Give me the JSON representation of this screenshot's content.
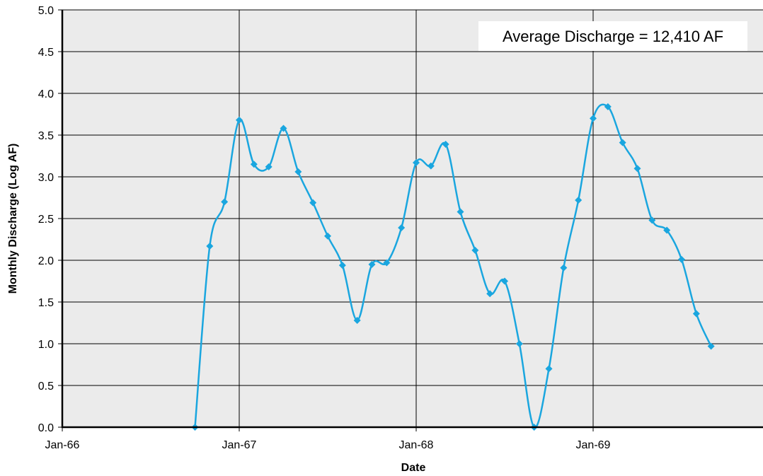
{
  "chart_data": {
    "type": "line",
    "title": "",
    "xlabel": "Date",
    "ylabel": "Monthly Discharge (Log AF)",
    "x_ticks": [
      "Jan-66",
      "Jan-67",
      "Jan-68",
      "Jan-69"
    ],
    "ylim": [
      0,
      5
    ],
    "y_ticks": [
      "0.0",
      "0.5",
      "1.0",
      "1.5",
      "2.0",
      "2.5",
      "3.0",
      "3.5",
      "4.0",
      "4.5",
      "5.0"
    ],
    "grid": true,
    "annotation": "Average Discharge = 12,410 AF",
    "colors": {
      "series": "#1aa6df",
      "plot_bg": "#ebebeb",
      "grid": "#000000"
    },
    "series": [
      {
        "x": [
          "Oct-66",
          "Nov-66",
          "Dec-66",
          "Jan-67",
          "Feb-67",
          "Mar-67",
          "Apr-67",
          "May-67",
          "Jun-67",
          "Jul-67",
          "Aug-67",
          "Sep-67",
          "Oct-67",
          "Nov-67",
          "Dec-67",
          "Jan-68",
          "Feb-68",
          "Mar-68",
          "Apr-68",
          "May-68",
          "Jun-68",
          "Jul-68",
          "Aug-68",
          "Sep-68",
          "Oct-68",
          "Nov-68",
          "Dec-68",
          "Jan-69",
          "Feb-69",
          "Mar-69",
          "Apr-69",
          "May-69",
          "Jun-69",
          "Jul-69",
          "Aug-69",
          "Sep-69"
        ],
        "values": [
          0.0,
          2.17,
          2.7,
          3.68,
          3.15,
          3.12,
          3.58,
          3.06,
          2.69,
          2.29,
          1.94,
          1.28,
          1.95,
          1.97,
          2.39,
          3.17,
          3.13,
          3.39,
          2.58,
          2.12,
          1.6,
          1.75,
          1.0,
          0.0,
          0.7,
          1.91,
          2.72,
          3.7,
          3.84,
          3.41,
          3.1,
          2.48,
          2.36,
          2.01,
          1.36,
          0.97
        ]
      }
    ]
  }
}
